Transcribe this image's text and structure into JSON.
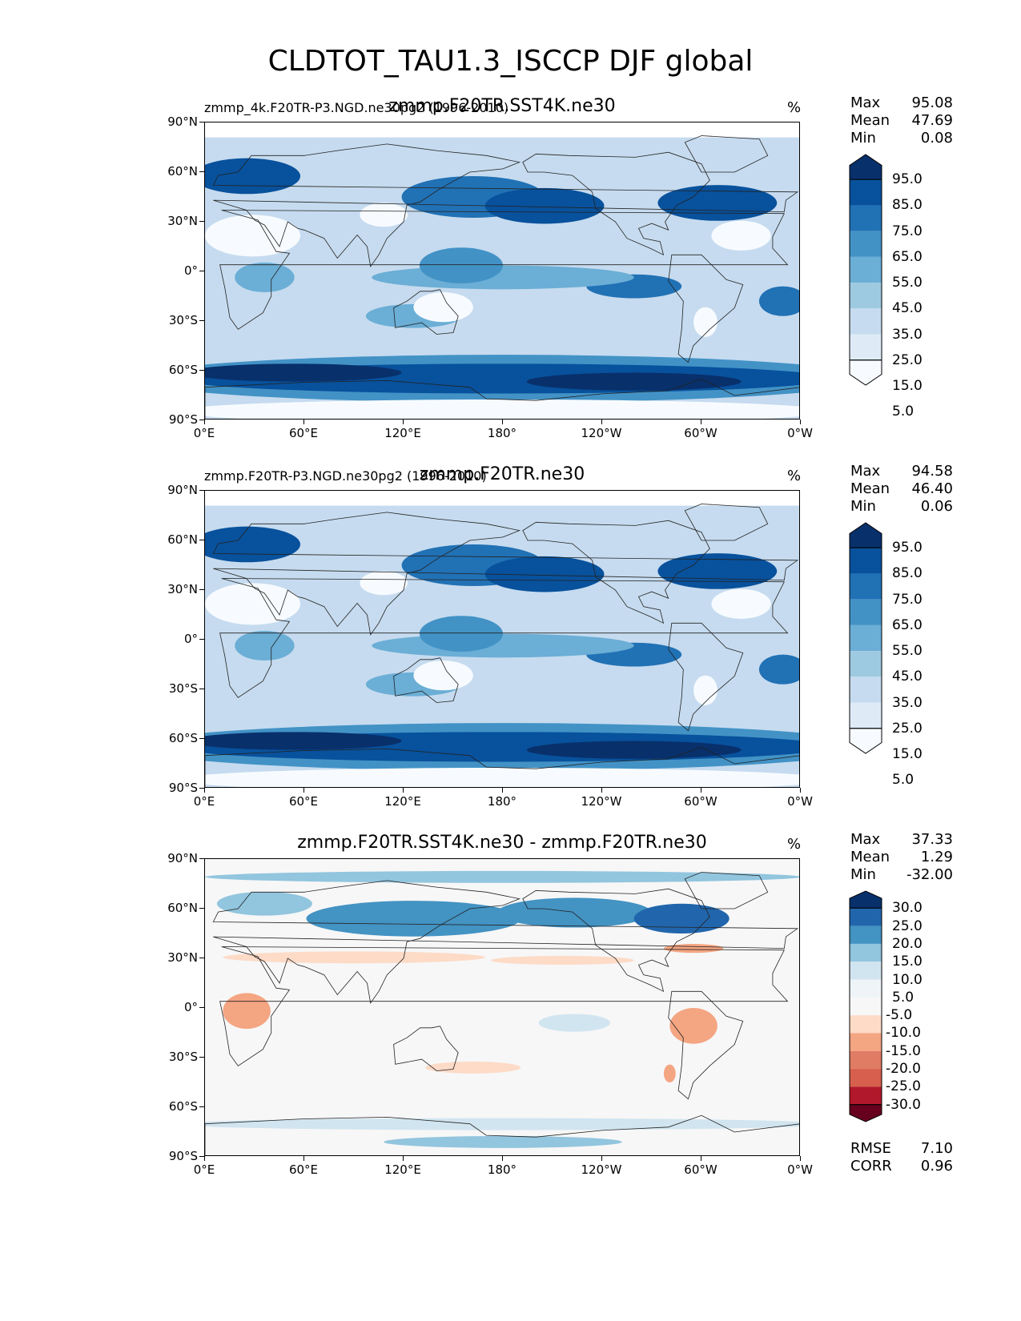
{
  "title": "CLDTOT_TAU1.3_ISCCP DJF global",
  "panels": [
    {
      "left_label": "zmmp_4k.F20TR-P3.NGD.ne30pg2 (1996-2010)",
      "center_label": "zmmp.F20TR.SST4K.ne30",
      "units": "%",
      "stats": [
        {
          "label": "Max",
          "value": "95.08"
        },
        {
          "label": "Mean",
          "value": "47.69"
        },
        {
          "label": "Min",
          "value": "0.08"
        }
      ],
      "colorbar": {
        "labels": [
          "95.0",
          "85.0",
          "75.0",
          "65.0",
          "55.0",
          "45.0",
          "35.0",
          "25.0",
          "15.0",
          "5.0"
        ],
        "colors": [
          "#08306b",
          "#08519c",
          "#2171b5",
          "#4292c6",
          "#6baed6",
          "#9ecae1",
          "#c6dbef",
          "#deebf7",
          "#f7fbff"
        ]
      }
    },
    {
      "left_label": "zmmp.F20TR-P3.NGD.ne30pg2 (1996-2010)",
      "center_label": "zmmp.F20TR.ne30",
      "units": "%",
      "stats": [
        {
          "label": "Max",
          "value": "94.58"
        },
        {
          "label": "Mean",
          "value": "46.40"
        },
        {
          "label": "Min",
          "value": "0.06"
        }
      ],
      "colorbar": {
        "labels": [
          "95.0",
          "85.0",
          "75.0",
          "65.0",
          "55.0",
          "45.0",
          "35.0",
          "25.0",
          "15.0",
          "5.0"
        ],
        "colors": [
          "#08306b",
          "#08519c",
          "#2171b5",
          "#4292c6",
          "#6baed6",
          "#9ecae1",
          "#c6dbef",
          "#deebf7",
          "#f7fbff"
        ]
      }
    },
    {
      "left_label": "",
      "center_label": "zmmp.F20TR.SST4K.ne30 - zmmp.F20TR.ne30",
      "units": "%",
      "stats": [
        {
          "label": "Max",
          "value": "37.33"
        },
        {
          "label": "Mean",
          "value": "1.29"
        },
        {
          "label": "Min",
          "value": "-32.00"
        }
      ],
      "extra_stats": [
        {
          "label": "RMSE",
          "value": "7.10"
        },
        {
          "label": "CORR",
          "value": "0.96"
        }
      ],
      "colorbar": {
        "labels": [
          "30.0",
          "25.0",
          "20.0",
          "15.0",
          "10.0",
          "5.0",
          "-5.0",
          "-10.0",
          "-15.0",
          "-20.0",
          "-25.0",
          "-30.0"
        ],
        "colors": [
          "#08306b",
          "#2166ac",
          "#4393c3",
          "#92c5de",
          "#d1e5f0",
          "#eef4f8",
          "#f7f7f7",
          "#fddbc7",
          "#f4a582",
          "#e07b64",
          "#d6604d",
          "#b2182b",
          "#67001f"
        ]
      }
    }
  ],
  "axes": {
    "lat_ticks": [
      "90°N",
      "60°N",
      "30°N",
      "0°",
      "30°S",
      "60°S",
      "90°S"
    ],
    "lon_ticks": [
      "0°E",
      "60°E",
      "120°E",
      "180°",
      "120°W",
      "60°W",
      "0°W"
    ]
  }
}
